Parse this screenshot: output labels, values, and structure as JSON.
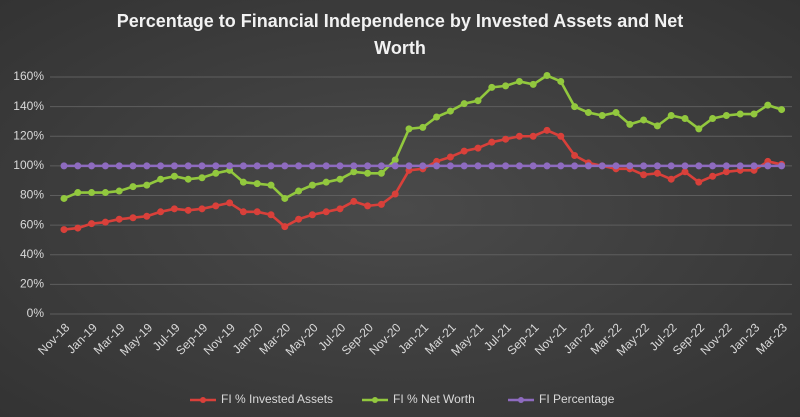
{
  "chart_data": {
    "type": "line",
    "title": "Percentage to Financial Independence by Invested Assets and Net Worth",
    "categories": [
      "Nov-18",
      null,
      "Jan-19",
      null,
      "Mar-19",
      null,
      "May-19",
      null,
      "Jul-19",
      null,
      "Sep-19",
      null,
      "Nov-19",
      null,
      "Jan-20",
      null,
      "Mar-20",
      null,
      "May-20",
      null,
      "Jul-20",
      null,
      "Sep-20",
      null,
      "Nov-20",
      null,
      "Jan-21",
      null,
      "Mar-21",
      null,
      "May-21",
      null,
      "Jul-21",
      null,
      "Sep-21",
      null,
      "Nov-21",
      null,
      "Jan-22",
      null,
      "Mar-22",
      null,
      "May-22",
      null,
      "Jul-22",
      null,
      "Sep-22",
      null,
      "Nov-22",
      null,
      "Jan-23",
      null,
      "Mar-23"
    ],
    "series": [
      {
        "name": "FI % Invested Assets",
        "color": "#d9403a",
        "values": [
          57,
          58,
          61,
          62,
          64,
          65,
          66,
          69,
          71,
          70,
          71,
          73,
          75,
          69,
          69,
          67,
          59,
          64,
          67,
          69,
          71,
          76,
          73,
          74,
          81,
          97,
          98,
          103,
          106,
          110,
          112,
          116,
          118,
          120,
          120,
          124,
          120,
          107,
          102,
          100,
          98,
          98,
          94,
          95,
          91,
          96,
          89,
          93,
          96,
          97,
          97,
          103,
          101
        ]
      },
      {
        "name": "FI % Net Worth",
        "color": "#92c83e",
        "values": [
          78,
          82,
          82,
          82,
          83,
          86,
          87,
          91,
          93,
          91,
          92,
          95,
          97,
          89,
          88,
          87,
          78,
          83,
          87,
          89,
          91,
          96,
          95,
          95,
          104,
          125,
          126,
          133,
          137,
          142,
          144,
          153,
          154,
          157,
          155,
          161,
          157,
          140,
          136,
          134,
          136,
          128,
          131,
          127,
          134,
          132,
          125,
          132,
          134,
          135,
          135,
          141,
          138
        ]
      },
      {
        "name": "FI Percentage",
        "color": "#8e6bbf",
        "values": [
          100,
          100,
          100,
          100,
          100,
          100,
          100,
          100,
          100,
          100,
          100,
          100,
          100,
          100,
          100,
          100,
          100,
          100,
          100,
          100,
          100,
          100,
          100,
          100,
          100,
          100,
          100,
          100,
          100,
          100,
          100,
          100,
          100,
          100,
          100,
          100,
          100,
          100,
          100,
          100,
          100,
          100,
          100,
          100,
          100,
          100,
          100,
          100,
          100,
          100,
          100,
          100,
          100
        ]
      }
    ],
    "ylim": [
      0,
      160
    ],
    "yticks": [
      {
        "value": 0,
        "label": "0%"
      },
      {
        "value": 20,
        "label": "20%"
      },
      {
        "value": 40,
        "label": "40%"
      },
      {
        "value": 60,
        "label": "60%"
      },
      {
        "value": 80,
        "label": "80%"
      },
      {
        "value": 100,
        "label": "100%"
      },
      {
        "value": 120,
        "label": "120%"
      },
      {
        "value": 140,
        "label": "140%"
      },
      {
        "value": 160,
        "label": "160%"
      }
    ],
    "grid": true,
    "legend": "bottom"
  }
}
